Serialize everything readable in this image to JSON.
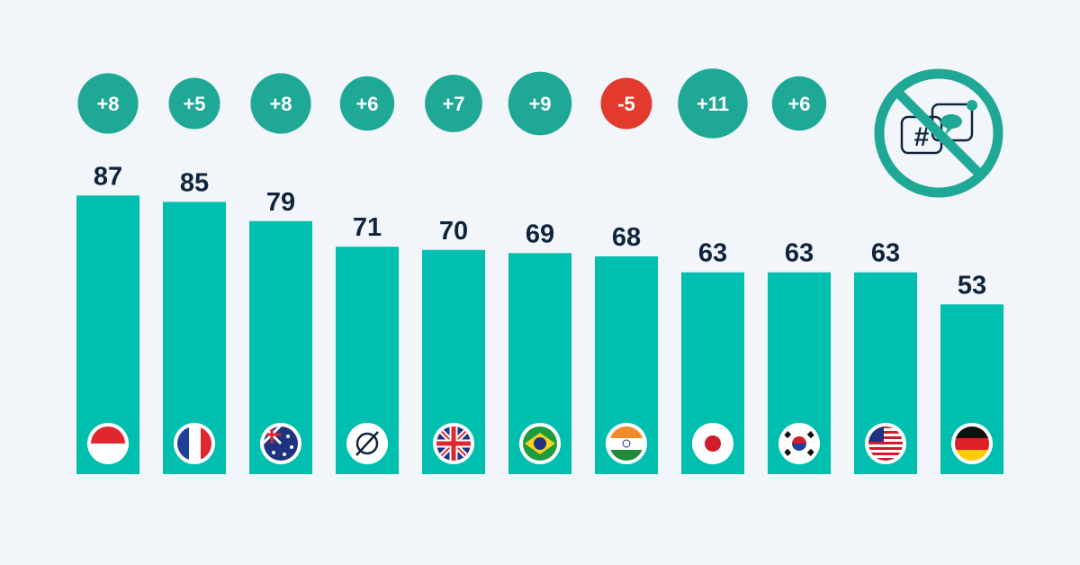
{
  "chart_data": {
    "type": "bar",
    "title": "",
    "xlabel": "",
    "ylabel": "",
    "ylim": [
      0,
      87
    ],
    "grid": false,
    "categories": [
      "flag-indonesia",
      "flag-france",
      "flag-australia",
      "average-icon",
      "flag-united-kingdom",
      "flag-brazil",
      "flag-india",
      "flag-japan",
      "flag-south-korea",
      "flag-united-states",
      "flag-germany"
    ],
    "values": [
      87,
      85,
      79,
      71,
      70,
      69,
      68,
      63,
      63,
      63,
      53
    ],
    "value_labels": [
      "87",
      "85",
      "79",
      "71",
      "70",
      "69",
      "68",
      "63",
      "63",
      "63",
      "53"
    ],
    "changes": [
      8,
      5,
      8,
      6,
      7,
      9,
      -5,
      11,
      6
    ],
    "change_labels": [
      "+8",
      "+5",
      "+8",
      "+6",
      "+7",
      "+9",
      "-5",
      "+11",
      "+6"
    ]
  },
  "colors": {
    "bar": "#00bfae",
    "positive": "#1fa896",
    "negative": "#e23b2e",
    "text": "#10243e",
    "background": "#f2f6fa"
  },
  "corner_icon": "no-hashtag-social-media-icon"
}
